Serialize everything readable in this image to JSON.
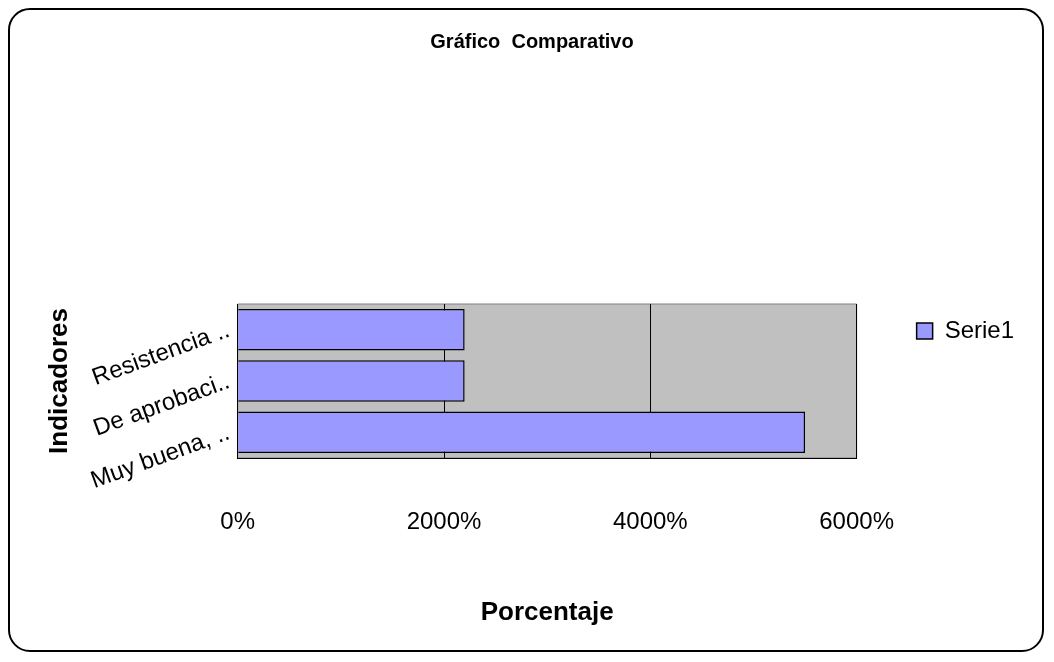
{
  "chart_data": {
    "type": "bar",
    "orientation": "horizontal",
    "title": "Gráfico  Comparativo",
    "xlabel": "Porcentaje",
    "ylabel": "Indicadores",
    "categories": [
      "Resistencia ..",
      "De aprobaci..",
      "Muy buena, .."
    ],
    "series": [
      {
        "name": "Serie1",
        "color": "#9999ff",
        "values": [
          2200,
          2200,
          5500
        ]
      }
    ],
    "xlim": [
      0,
      6000
    ],
    "xticks": [
      {
        "value": 0,
        "label": "0%"
      },
      {
        "value": 2000,
        "label": "2000%"
      },
      {
        "value": 4000,
        "label": "4000%"
      },
      {
        "value": 6000,
        "label": "6000%"
      }
    ],
    "grid": "x",
    "legend": "right"
  }
}
